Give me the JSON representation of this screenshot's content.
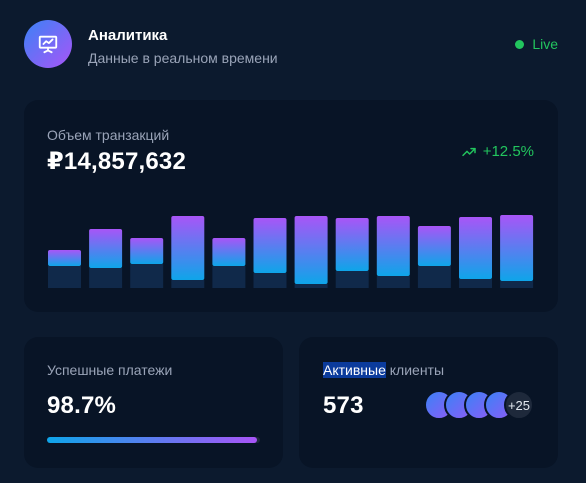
{
  "header": {
    "title": "Аналитика",
    "subtitle": "Данные в реальном времени",
    "icon": "presentation-chart-icon",
    "status": "Live",
    "status_color": "#22c55e"
  },
  "transactions": {
    "label": "Объем транзакций",
    "value": "₽14,857,632",
    "trend": "+12.5%",
    "trend_icon": "trending-up-icon"
  },
  "chart_data": {
    "type": "bar",
    "series": [
      {
        "values": [
          16,
          39,
          26,
          64,
          28,
          55,
          68,
          53,
          60,
          40,
          62,
          66
        ]
      },
      {
        "values": [
          22,
          20,
          24,
          8,
          22,
          15,
          4,
          17,
          12,
          22,
          9,
          7
        ]
      }
    ],
    "colors": {
      "top": "#a855f7",
      "bottom": "#0ea5e9",
      "base": "#10294a"
    },
    "grid": false,
    "legend": "none"
  },
  "payments": {
    "label": "Успешные платежи",
    "value": "98.7%",
    "progress": 0.987
  },
  "clients": {
    "label_highlight": "Активные",
    "label_rest": " клиенты",
    "value": "573",
    "more": "+25"
  }
}
